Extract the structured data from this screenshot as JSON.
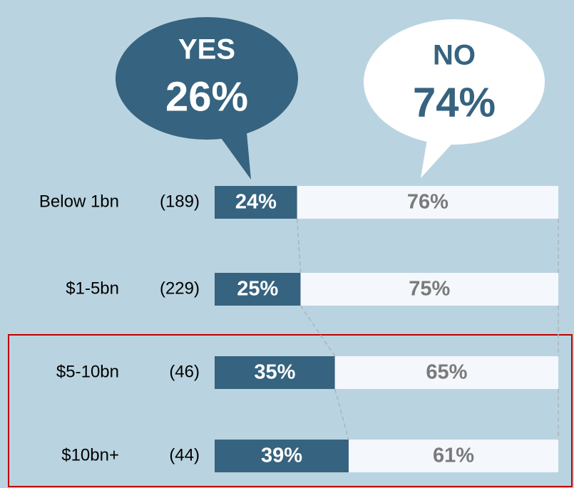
{
  "chart_data": {
    "type": "bar",
    "orientation": "horizontal",
    "stacked": true,
    "categories": [
      "Below 1bn",
      "$1-5bn",
      "$5-10bn",
      "$10bn+"
    ],
    "sample_sizes": [
      "(189)",
      "(229)",
      "(46)",
      "(44)"
    ],
    "xlim": [
      0,
      100
    ],
    "series": [
      {
        "name": "YES",
        "color": "#36637f",
        "values": [
          24,
          25,
          35,
          39
        ],
        "value_labels": [
          "24%",
          "25%",
          "35%",
          "39%"
        ]
      },
      {
        "name": "NO",
        "color": "#f4f7fb",
        "values": [
          76,
          75,
          65,
          61
        ],
        "value_labels": [
          "76%",
          "75%",
          "65%",
          "61%"
        ]
      }
    ],
    "totals": [
      {
        "name": "YES",
        "value": 26,
        "value_label": "26%"
      },
      {
        "name": "NO",
        "value": 74,
        "value_label": "74%"
      }
    ]
  }
}
